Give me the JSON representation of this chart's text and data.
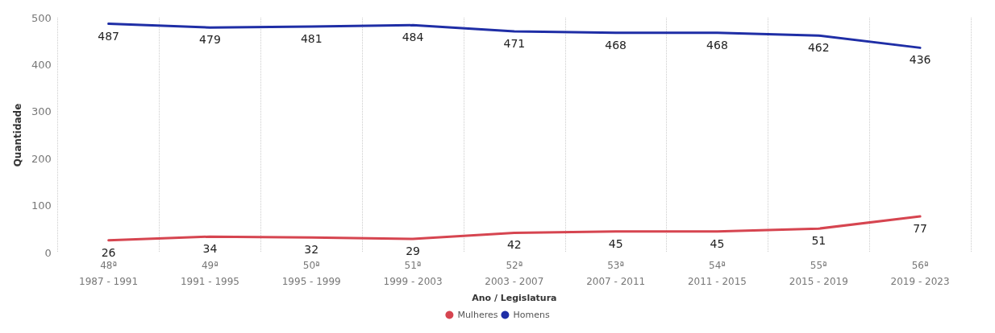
{
  "chart_data": {
    "type": "line",
    "xlabel": "Ano / Legislatura",
    "ylabel": "Quantidade",
    "categories": [
      "48ª\n1987 - 1991",
      "49ª\n1991 - 1995",
      "50ª\n1995 - 1999",
      "51ª\n1999 - 2003",
      "52ª\n2003 - 2007",
      "53ª\n2007 - 2011",
      "54ª\n2011 - 2015",
      "55ª\n2015 - 2019",
      "56ª\n2019 - 2023"
    ],
    "series": [
      {
        "name": "Mulheres",
        "color": "#d64550",
        "values": [
          26,
          34,
          32,
          29,
          42,
          45,
          45,
          51,
          77
        ]
      },
      {
        "name": "Homens",
        "color": "#1f2ea6",
        "values": [
          487,
          479,
          481,
          484,
          471,
          468,
          468,
          462,
          436
        ]
      }
    ],
    "ylim": [
      0,
      500
    ],
    "yticks": [
      0,
      100,
      200,
      300,
      400,
      500
    ],
    "grid": "x",
    "legend": "bottom",
    "data_labels": true,
    "marker": "none",
    "line_style": "solid"
  }
}
